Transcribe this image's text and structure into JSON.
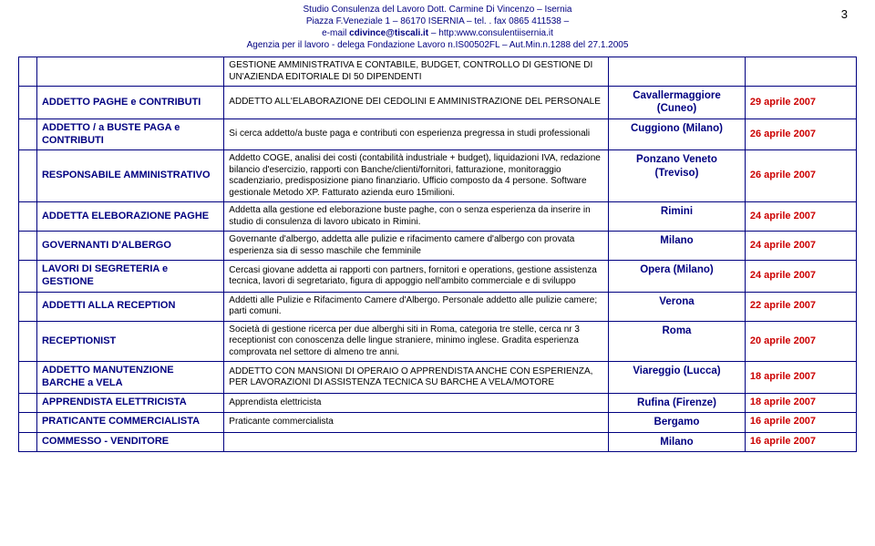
{
  "page_number": "3",
  "header": {
    "line1": "Studio Consulenza del Lavoro Dott. Carmine Di Vincenzo – Isernia",
    "line2": "Piazza F.Veneziale 1 – 86170 ISERNIA – tel. . fax 0865 411538 –",
    "line3": "e-mail cdivince@tiscali.it – http:www.consulentiisernia.it",
    "line4": "Agenzia per il lavoro - delega Fondazione Lavoro n.IS00502FL – Aut.Min.n.1288 del 27.1.2005"
  },
  "toprow": {
    "desc": "GESTIONE AMMINISTRATIVA E CONTABILE, BUDGET, CONTROLLO DI GESTIONE DI UN'AZIENDA EDITORIALE DI 50 DIPENDENTI"
  },
  "rows": [
    {
      "title": "ADDETTO PAGHE e CONTRIBUTI",
      "desc": "ADDETTO ALL'ELABORAZIONE DEI CEDOLINI E AMMINISTRAZIONE DEL PERSONALE",
      "loc": "Cavallermaggiore (Cuneo)",
      "date": "29 aprile 2007"
    },
    {
      "title": "ADDETTO / a BUSTE PAGA e CONTRIBUTI",
      "desc": "Si cerca addetto/a buste paga e contributi con esperienza pregressa in studi professionali",
      "loc": "Cuggiono (Milano)",
      "date": "26 aprile 2007"
    },
    {
      "title": "RESPONSABILE AMMINISTRATIVO",
      "desc": "Addetto COGE, analisi dei costi (contabilità industriale + budget), liquidazioni IVA, redazione bilancio d'esercizio, rapporti con Banche/clienti/fornitori, fatturazione, monitoraggio scadenziario, predisposizione piano finanziario. Ufficio composto da 4 persone. Software gestionale Metodo XP. Fatturato azienda euro 15milioni.",
      "loc": "Ponzano Veneto (Treviso)",
      "date": "26 aprile 2007"
    },
    {
      "title": "ADDETTA ELEBORAZIONE PAGHE",
      "desc": "Addetta alla gestione ed eleborazione buste paghe, con o senza esperienza da inserire in studio di consulenza di lavoro ubicato in Rimini.",
      "loc": "Rimini",
      "date": "24 aprile 2007"
    },
    {
      "title": "GOVERNANTI D'ALBERGO",
      "desc": "Governante d'albergo, addetta alle pulizie e rifacimento camere d'albergo con provata esperienza sia di sesso maschile che femminile",
      "loc": "Milano",
      "date": "24 aprile 2007"
    },
    {
      "title": "LAVORI DI SEGRETERIA e GESTIONE",
      "desc": "Cercasi giovane addetta ai rapporti con partners, fornitori e operations, gestione assistenza tecnica, lavori di segretariato, figura di appoggio nell'ambito commerciale e di sviluppo",
      "loc": "Opera (Milano)",
      "date": "24 aprile 2007"
    },
    {
      "title": "ADDETTI ALLA RECEPTION",
      "desc": "Addetti alle Pulizie e Rifacimento Camere d'Albergo.\nPersonale addetto alle pulizie camere; parti comuni.",
      "loc": "Verona",
      "date": "22 aprile 2007"
    },
    {
      "title": "RECEPTIONIST",
      "desc": "Società di gestione ricerca per due alberghi siti in Roma, categoria tre stelle, cerca nr 3 receptionist con conoscenza delle lingue straniere, minimo inglese.  Gradita esperienza comprovata nel settore di almeno tre anni.",
      "loc": "Roma",
      "date": "20 aprile 2007"
    },
    {
      "title": "ADDETTO MANUTENZIONE BARCHE a VELA",
      "desc": "ADDETTO CON MANSIONI DI OPERAIO O APPRENDISTA ANCHE CON ESPERIENZA, PER LAVORAZIONI DI ASSISTENZA TECNICA SU BARCHE A VELA/MOTORE",
      "loc": "Viareggio (Lucca)",
      "date": "18 aprile 2007"
    },
    {
      "title": "APPRENDISTA ELETTRICISTA",
      "desc": "Apprendista elettricista",
      "loc": "Rufina (Firenze)",
      "date": "18 aprile 2007"
    },
    {
      "title": "PRATICANTE COMMERCIALISTA",
      "desc": "Praticante commercialista",
      "loc": "Bergamo",
      "date": "16 aprile 2007"
    },
    {
      "title": "COMMESSO - VENDITORE",
      "desc": "",
      "loc": "Milano",
      "date": "16 aprile 2007"
    }
  ]
}
